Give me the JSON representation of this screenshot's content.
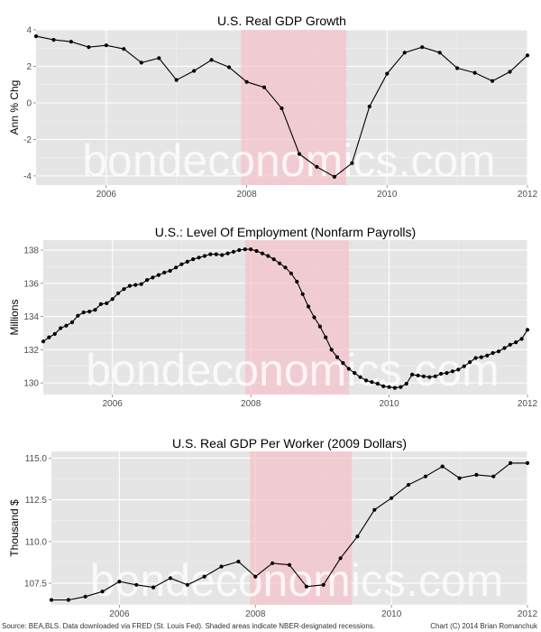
{
  "chart_data": [
    {
      "type": "line",
      "title": "U.S. Real GDP Growth",
      "ylabel": "Ann % Chg",
      "xlabel": "",
      "xlim": [
        2005,
        2012
      ],
      "ylim": [
        -4.5,
        4
      ],
      "xticks": [
        2006,
        2008,
        2010,
        2012
      ],
      "xtick_labels": [
        "2006",
        "2008",
        "2010",
        "2012"
      ],
      "yticks": [
        -4,
        -2,
        0,
        2,
        4
      ],
      "ytick_labels": [
        "-4",
        "-2",
        "0",
        "2",
        "4"
      ],
      "recession": [
        2007.92,
        2009.42
      ],
      "markers": true,
      "series": [
        {
          "x": [
            2005.0,
            2005.25,
            2005.5,
            2005.75,
            2006.0,
            2006.25,
            2006.5,
            2006.75,
            2007.0,
            2007.25,
            2007.5,
            2007.75,
            2008.0,
            2008.25,
            2008.5,
            2008.75,
            2009.0,
            2009.25,
            2009.5,
            2009.75,
            2010.0,
            2010.25,
            2010.5,
            2010.75,
            2011.0,
            2011.25,
            2011.5,
            2011.75,
            2012.0
          ],
          "y": [
            3.65,
            3.45,
            3.35,
            3.05,
            3.15,
            2.95,
            2.2,
            2.45,
            1.25,
            1.75,
            2.35,
            1.95,
            1.15,
            0.85,
            -0.3,
            -2.8,
            -3.5,
            -4.05,
            -3.3,
            -0.2,
            1.6,
            2.75,
            3.05,
            2.75,
            1.9,
            1.65,
            1.2,
            1.7,
            2.6
          ]
        }
      ]
    },
    {
      "type": "line",
      "title": "U.S.: Level Of Employment (Nonfarm Payrolls)",
      "ylabel": "Millions",
      "xlabel": "",
      "xlim": [
        2005,
        2012
      ],
      "ylim": [
        129.3,
        138.6
      ],
      "xticks": [
        2006,
        2008,
        2010,
        2012
      ],
      "xtick_labels": [
        "2006",
        "2008",
        "2010",
        "2012"
      ],
      "yticks": [
        130,
        132,
        134,
        136,
        138
      ],
      "ytick_labels": [
        "130",
        "132",
        "134",
        "136",
        "138"
      ],
      "recession": [
        2007.92,
        2009.42
      ],
      "markers": true,
      "series": [
        {
          "x": [
            2005.0,
            2005.083,
            2005.167,
            2005.25,
            2005.333,
            2005.417,
            2005.5,
            2005.583,
            2005.667,
            2005.75,
            2005.833,
            2005.917,
            2006.0,
            2006.083,
            2006.167,
            2006.25,
            2006.333,
            2006.417,
            2006.5,
            2006.583,
            2006.667,
            2006.75,
            2006.833,
            2006.917,
            2007.0,
            2007.083,
            2007.167,
            2007.25,
            2007.333,
            2007.417,
            2007.5,
            2007.583,
            2007.667,
            2007.75,
            2007.833,
            2007.917,
            2008.0,
            2008.083,
            2008.167,
            2008.25,
            2008.333,
            2008.417,
            2008.5,
            2008.583,
            2008.667,
            2008.75,
            2008.833,
            2008.917,
            2009.0,
            2009.083,
            2009.167,
            2009.25,
            2009.333,
            2009.417,
            2009.5,
            2009.583,
            2009.667,
            2009.75,
            2009.833,
            2009.917,
            2010.0,
            2010.083,
            2010.167,
            2010.25,
            2010.333,
            2010.417,
            2010.5,
            2010.583,
            2010.667,
            2010.75,
            2010.833,
            2010.917,
            2011.0,
            2011.083,
            2011.167,
            2011.25,
            2011.333,
            2011.417,
            2011.5,
            2011.583,
            2011.667,
            2011.75,
            2011.833,
            2011.917,
            2012.0
          ],
          "y": [
            132.5,
            132.75,
            132.95,
            133.3,
            133.45,
            133.65,
            134.05,
            134.25,
            134.3,
            134.4,
            134.75,
            134.8,
            135.05,
            135.4,
            135.65,
            135.85,
            135.9,
            135.95,
            136.2,
            136.35,
            136.5,
            136.65,
            136.75,
            136.95,
            137.15,
            137.3,
            137.45,
            137.55,
            137.65,
            137.75,
            137.75,
            137.7,
            137.8,
            137.9,
            138.0,
            138.05,
            138.05,
            137.95,
            137.8,
            137.65,
            137.45,
            137.2,
            136.95,
            136.6,
            136.1,
            135.35,
            134.6,
            133.95,
            133.4,
            132.75,
            132.0,
            131.55,
            131.2,
            130.85,
            130.6,
            130.35,
            130.15,
            130.05,
            129.95,
            129.8,
            129.75,
            129.7,
            129.75,
            129.95,
            130.5,
            130.45,
            130.4,
            130.35,
            130.4,
            130.55,
            130.6,
            130.7,
            130.8,
            131.0,
            131.25,
            131.5,
            131.55,
            131.65,
            131.8,
            131.9,
            132.1,
            132.3,
            132.45,
            132.65,
            133.2
          ]
        }
      ]
    },
    {
      "type": "line",
      "title": "U.S. Real GDP Per Worker (2009 Dollars)",
      "ylabel": "Thousand $",
      "xlabel": "",
      "xlim": [
        2005,
        2012
      ],
      "ylim": [
        106.2,
        115.4
      ],
      "xticks": [
        2006,
        2008,
        2010,
        2012
      ],
      "xtick_labels": [
        "2006",
        "2008",
        "2010",
        "2012"
      ],
      "yticks": [
        107.5,
        110.0,
        112.5,
        115.0
      ],
      "ytick_labels": [
        "107.5",
        "110.0",
        "112.5",
        "115.0"
      ],
      "recession": [
        2007.92,
        2009.42
      ],
      "markers": true,
      "series": [
        {
          "x": [
            2005.0,
            2005.25,
            2005.5,
            2005.75,
            2006.0,
            2006.25,
            2006.5,
            2006.75,
            2007.0,
            2007.25,
            2007.5,
            2007.75,
            2008.0,
            2008.25,
            2008.5,
            2008.75,
            2009.0,
            2009.25,
            2009.5,
            2009.75,
            2010.0,
            2010.25,
            2010.5,
            2010.75,
            2011.0,
            2011.25,
            2011.5,
            2011.75,
            2012.0
          ],
          "y": [
            106.5,
            106.5,
            106.7,
            107.0,
            107.6,
            107.4,
            107.25,
            107.8,
            107.4,
            107.9,
            108.5,
            108.8,
            107.9,
            108.7,
            108.6,
            107.3,
            107.4,
            109.0,
            110.3,
            111.9,
            112.6,
            113.4,
            113.9,
            114.5,
            113.8,
            114.0,
            113.9,
            114.7,
            114.7
          ]
        }
      ]
    }
  ],
  "watermark": "bondeconomics.com",
  "source_note": "Source: BEA,BLS. Data downloaded via FRED (St. Louis Fed). Shaded areas indicate NBER-designated recessions.",
  "credit": "Chart (C) 2014 Brian Romanchuk",
  "colors": {
    "panel_bg": "#e5e5e5",
    "grid_major": "#ffffff",
    "grid_minor": "#f2f2f2",
    "recession_fill": "#f4c2cb",
    "line": "#000000",
    "tick_text": "#4d4d4d"
  }
}
